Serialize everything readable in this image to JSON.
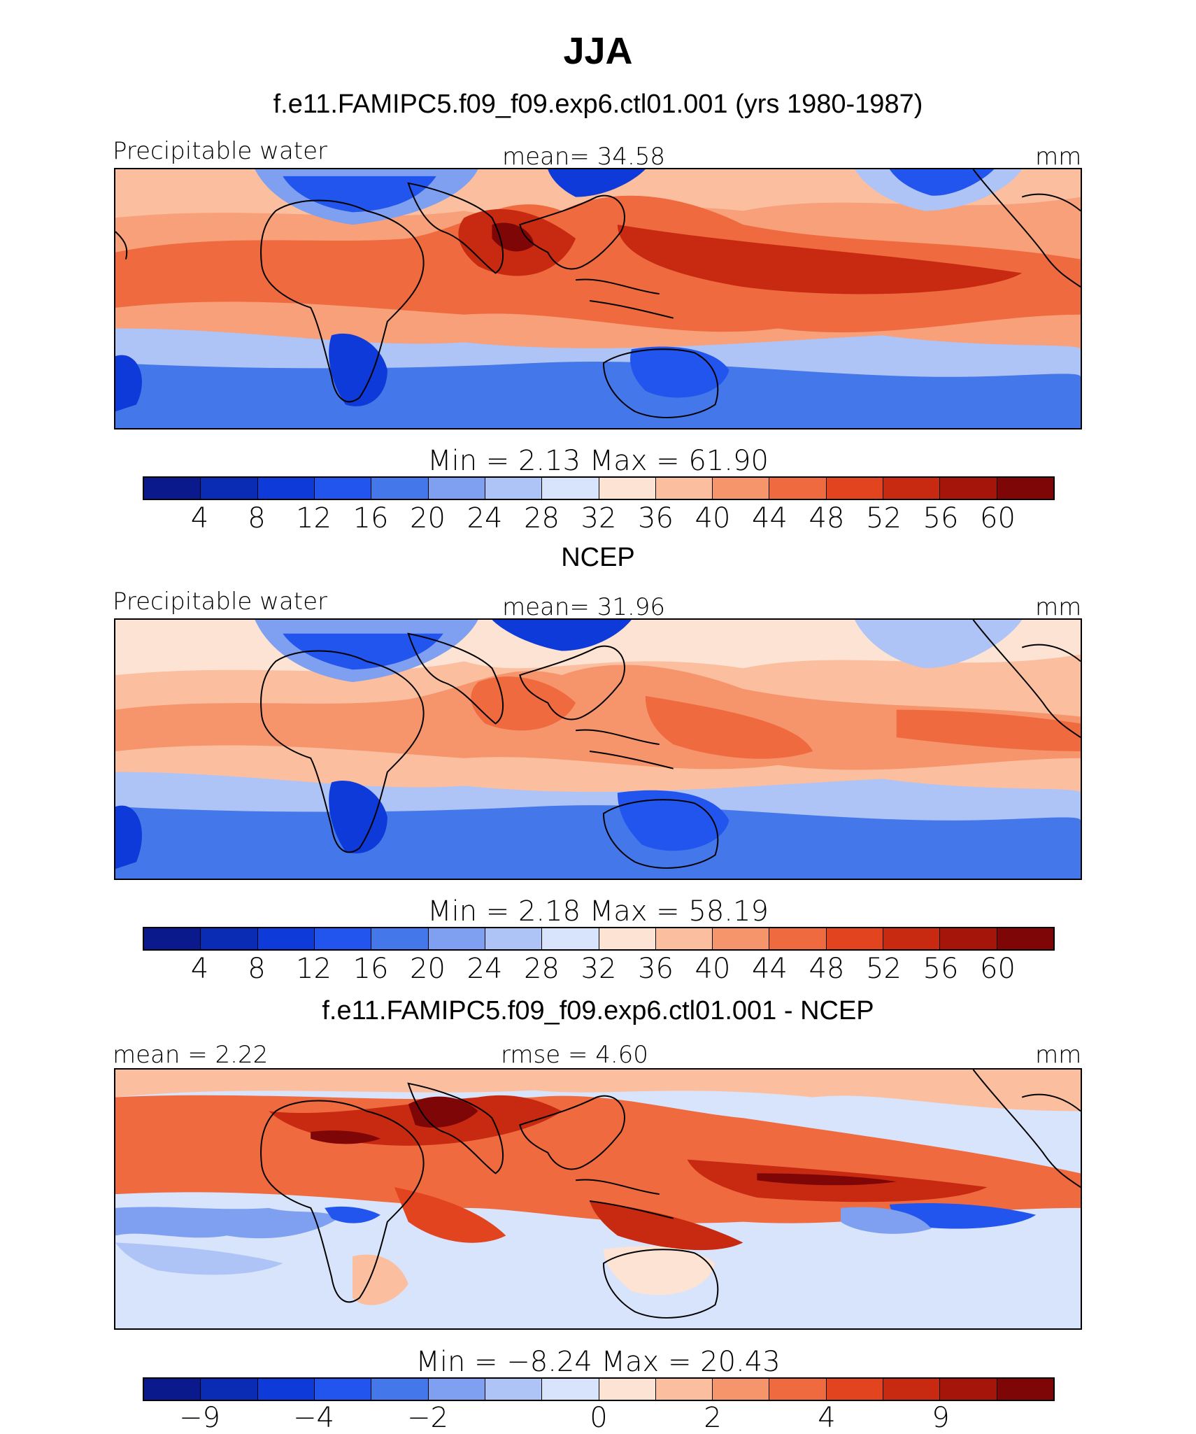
{
  "title": "JJA",
  "panels": [
    {
      "subtitle": "f.e11.FAMIPC5.f09_f09.exp6.ctl01.001 (yrs 1980-1987)",
      "left_label": "Precipitable water",
      "center_label": "mean=   34.58",
      "right_label": "mm",
      "minmax": "Min =    2.13  Max =   61.90",
      "tick_labels": [
        "4",
        "8",
        "12",
        "16",
        "20",
        "24",
        "28",
        "32",
        "36",
        "40",
        "44",
        "48",
        "52",
        "56",
        "60"
      ]
    },
    {
      "subtitle": "NCEP",
      "left_label": "Precipitable water",
      "center_label": "mean=   31.96",
      "right_label": "mm",
      "minmax": "Min =    2.18  Max =   58.19",
      "tick_labels": [
        "4",
        "8",
        "12",
        "16",
        "20",
        "24",
        "28",
        "32",
        "36",
        "40",
        "44",
        "48",
        "52",
        "56",
        "60"
      ]
    },
    {
      "subtitle": "f.e11.FAMIPC5.f09_f09.exp6.ctl01.001 - NCEP",
      "left_label": "mean =    2.22",
      "center_label": "rmse =    4.60",
      "right_label": "mm",
      "minmax": "Min =   −8.24  Max =   20.43",
      "tick_labels": [
        "−9",
        "−4",
        "−2",
        "0",
        "2",
        "4",
        "9"
      ]
    }
  ],
  "colorbar_colors": [
    "#0a1a8c",
    "#0a2bb4",
    "#0d3ad8",
    "#2255ee",
    "#4477ea",
    "#7f9ff0",
    "#aec3f6",
    "#d8e4fb",
    "#fde3d3",
    "#fbbfa0",
    "#f6946c",
    "#ef6a3f",
    "#e2441f",
    "#c72a10",
    "#a6150a",
    "#7f0606"
  ],
  "colors": {
    "deep_blue": "#0b2fc0",
    "blue": "#3f6fe8",
    "light_blue": "#a9c2f4",
    "pale_blue": "#d9e5fb",
    "pale_red": "#fcd9c6",
    "light_red": "#f7a07a",
    "red": "#ec5a2e",
    "deep_red": "#c9300f",
    "dark_red": "#8f0d05"
  }
}
